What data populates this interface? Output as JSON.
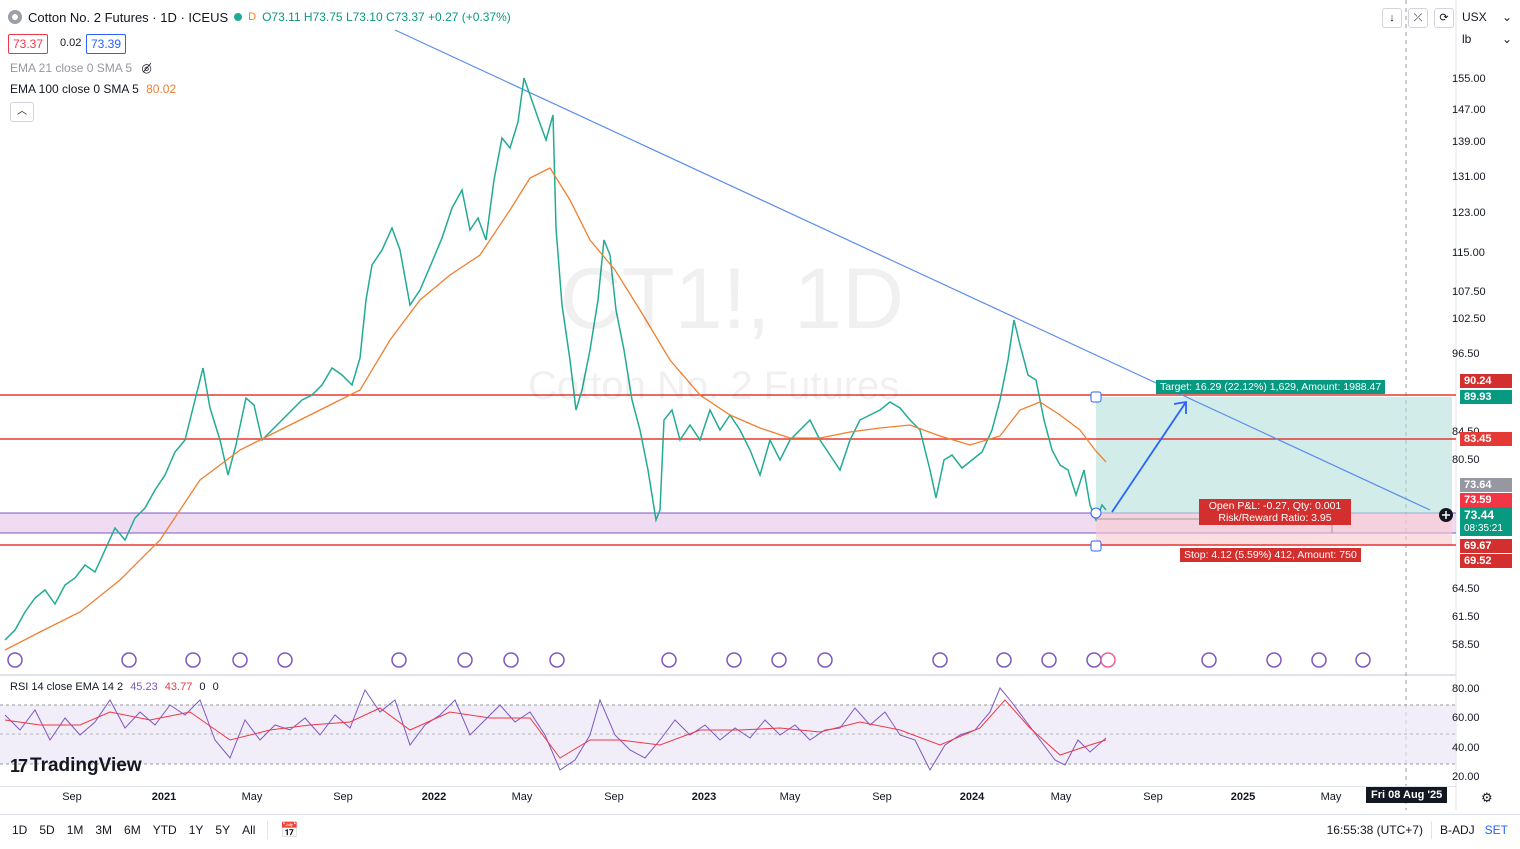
{
  "header": {
    "symbol_title": "Cotton No. 2 Futures · 1D · ICEUS",
    "interval_badge": "D",
    "open": "O73.11",
    "high": "H73.75",
    "low": "L73.10",
    "close": "C73.37",
    "change": "+0.27 (+0.37%)",
    "bid": "73.37",
    "spread": "0.02",
    "ask": "73.39"
  },
  "indicators": {
    "ema21": "EMA 21 close 0 SMA 5",
    "ema100": "EMA 100 close 0 SMA 5",
    "ema100_value": "80.02",
    "rsi": "RSI 14 close EMA 14 2",
    "rsi_value": "45.23",
    "rsi_ma_value": "43.77",
    "rsi_extra_1": "0",
    "rsi_extra_2": "0"
  },
  "watermark": {
    "ticker": "CT1!, 1D",
    "name": "Cotton No. 2 Futures"
  },
  "top_right": {
    "currency": "USX",
    "unit": "lb"
  },
  "price_axis": [
    "155.00",
    "147.00",
    "139.00",
    "131.00",
    "123.00",
    "115.00",
    "107.50",
    "102.50",
    "96.50",
    "84.50",
    "80.50",
    "64.50",
    "61.50",
    "58.50"
  ],
  "rsi_axis": [
    "80.00",
    "60.00",
    "40.00",
    "20.00"
  ],
  "price_tags": {
    "t90_24": "90.24",
    "t89_93": "89.93",
    "t83_45": "83.45",
    "t73_64": "73.64",
    "t73_59": "73.59",
    "t73_44": "73.44",
    "countdown": "08:35:21",
    "t69_67": "69.67",
    "t69_52": "69.52"
  },
  "position": {
    "target": "Target: 16.29 (22.12%) 1,629, Amount: 1988.47",
    "open_pl": "Open P&L: -0.27, Qty: 0.001",
    "risk_reward": "Risk/Reward Ratio: 3.95",
    "stop": "Stop: 4.12 (5.59%) 412, Amount: 750"
  },
  "time_axis": [
    "Sep",
    "2021",
    "May",
    "Sep",
    "2022",
    "May",
    "Sep",
    "2023",
    "May",
    "Sep",
    "2024",
    "May",
    "Sep",
    "2025",
    "May"
  ],
  "cursor_date": "Fri 08 Aug '25",
  "branding": "TradingView",
  "bottom": {
    "timeframes": [
      "1D",
      "5D",
      "1M",
      "3M",
      "6M",
      "YTD",
      "1Y",
      "5Y",
      "All"
    ],
    "clock": "16:55:38 (UTC+7)",
    "adj": "B-ADJ",
    "set": "SET"
  },
  "colors": {
    "up": "#089981",
    "down": "#f23645",
    "trendline": "#5b8def",
    "ema100": "#f08030",
    "rsi": "#7e57c2",
    "target_zone": "#b2dfdb",
    "stop_zone": "#f8d5d8"
  }
}
